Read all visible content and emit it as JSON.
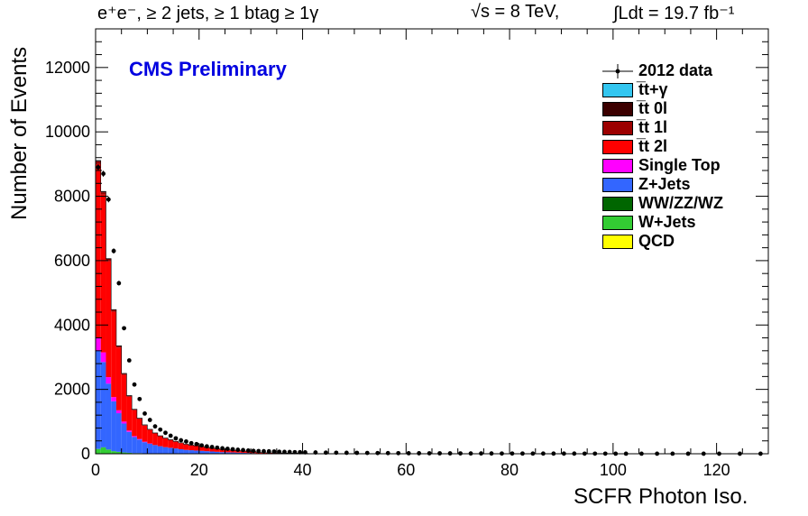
{
  "header": {
    "left": "e⁺e⁻, ≥ 2 jets, ≥ 1 btag ≥ 1γ",
    "center": "√s = 8 TeV,",
    "right": "∫Ldt = 19.7 fb⁻¹"
  },
  "chart_data": {
    "type": "bar",
    "stacked": true,
    "xlabel": "SCFR Photon Iso.",
    "ylabel": "Number of Events",
    "annotation": "CMS Preliminary",
    "xlim": [
      0,
      130
    ],
    "ylim": [
      0,
      13200
    ],
    "xticks": [
      0,
      20,
      40,
      60,
      80,
      100,
      120
    ],
    "yticks": [
      0,
      2000,
      4000,
      6000,
      8000,
      10000,
      12000
    ],
    "bin_width": 1,
    "legend_position": "top-right",
    "legend": [
      {
        "label": "2012 data",
        "kind": "data",
        "color": "#000000"
      },
      {
        "label": "t̅t+γ",
        "kind": "fill",
        "color": "#33c6f0"
      },
      {
        "label": "t̅t 0l",
        "kind": "fill",
        "color": "#3c0000"
      },
      {
        "label": "t̅t 1l",
        "kind": "fill",
        "color": "#9c0000"
      },
      {
        "label": "t̅t 2l",
        "kind": "fill",
        "color": "#ff0000"
      },
      {
        "label": "Single Top",
        "kind": "fill",
        "color": "#ff00ff"
      },
      {
        "label": "Z+Jets",
        "kind": "fill",
        "color": "#3366ff"
      },
      {
        "label": "WW/ZZ/WZ",
        "kind": "fill",
        "color": "#006600"
      },
      {
        "label": "W+Jets",
        "kind": "fill",
        "color": "#33cc33"
      },
      {
        "label": "QCD",
        "kind": "fill",
        "color": "#ffff00"
      }
    ],
    "stack_order": [
      "QCD",
      "W+Jets",
      "WW/ZZ/WZ",
      "Z+Jets",
      "Single Top",
      "t̅t 2l",
      "t̅t 1l",
      "t̅t 0l",
      "t̅t+γ"
    ],
    "series": [
      {
        "name": "QCD",
        "x": [
          0,
          1,
          2,
          3,
          4,
          5
        ],
        "values": [
          0,
          0,
          0,
          0,
          0,
          0
        ]
      },
      {
        "name": "W+Jets",
        "x": [
          0,
          1,
          2,
          3,
          4,
          5,
          6,
          7,
          8,
          9,
          10,
          11,
          12,
          13,
          14,
          15,
          16,
          17,
          18,
          19,
          20
        ],
        "values": [
          150,
          200,
          130,
          80,
          60,
          40,
          30,
          20,
          20,
          10,
          10,
          10,
          5,
          5,
          5,
          5,
          0,
          0,
          0,
          0,
          0
        ]
      },
      {
        "name": "WW/ZZ/WZ",
        "x": [
          0,
          1,
          2,
          3,
          4,
          5,
          6,
          7,
          8,
          9,
          10,
          11,
          12,
          13,
          14,
          15,
          16,
          17,
          18,
          19,
          20
        ],
        "values": [
          0,
          0,
          0,
          0,
          0,
          0,
          0,
          0,
          0,
          0,
          0,
          0,
          0,
          0,
          0,
          0,
          0,
          0,
          0,
          0,
          0
        ]
      },
      {
        "name": "Z+Jets",
        "x": [
          0,
          1,
          2,
          3,
          4,
          5,
          6,
          7,
          8,
          9,
          10,
          11,
          12,
          13,
          14,
          15,
          16,
          17,
          18,
          19,
          20,
          21,
          22,
          23,
          24,
          25,
          26,
          27,
          28,
          29,
          30
        ],
        "values": [
          3050,
          2650,
          2050,
          1550,
          1200,
          900,
          650,
          500,
          420,
          350,
          300,
          260,
          230,
          200,
          180,
          160,
          140,
          120,
          110,
          100,
          90,
          80,
          70,
          60,
          50,
          45,
          40,
          35,
          30,
          25,
          20
        ]
      },
      {
        "name": "Single Top",
        "x": [
          0,
          1,
          2,
          3,
          4,
          5,
          6,
          7,
          8,
          9,
          10
        ],
        "values": [
          400,
          300,
          200,
          130,
          90,
          60,
          40,
          30,
          20,
          15,
          10
        ]
      },
      {
        "name": "t̅t 2l",
        "x": [
          0,
          1,
          2,
          3,
          4,
          5,
          6,
          7,
          8,
          9,
          10,
          11,
          12,
          13,
          14,
          15,
          16,
          17,
          18,
          19,
          20,
          21,
          22,
          23,
          24,
          25,
          26,
          27,
          28,
          29,
          30,
          31,
          32,
          33,
          34,
          35,
          36,
          37,
          38,
          39,
          40
        ],
        "values": [
          5400,
          4900,
          3600,
          2650,
          1950,
          1450,
          1050,
          800,
          620,
          500,
          420,
          360,
          310,
          270,
          240,
          210,
          190,
          170,
          150,
          140,
          130,
          110,
          100,
          90,
          80,
          75,
          70,
          60,
          55,
          50,
          45,
          40,
          35,
          30,
          28,
          25,
          22,
          20,
          18,
          15,
          12
        ]
      },
      {
        "name": "t̅t 1l",
        "x": [
          0,
          1,
          2,
          3,
          4,
          5,
          6,
          7,
          8,
          9,
          10,
          11,
          12,
          13,
          14,
          15,
          16,
          17,
          18,
          19,
          20,
          21,
          22,
          23,
          24,
          25,
          26,
          27,
          28,
          29,
          30
        ],
        "values": [
          80,
          70,
          60,
          50,
          40,
          35,
          30,
          25,
          20,
          18,
          16,
          14,
          12,
          11,
          10,
          9,
          8,
          7,
          6,
          5,
          5,
          4,
          4,
          3,
          3,
          3,
          2,
          2,
          2,
          2,
          2
        ]
      },
      {
        "name": "t̅t 0l",
        "x": [
          0,
          1,
          2,
          3,
          4,
          5,
          6,
          7,
          8,
          9,
          10,
          11,
          12,
          13,
          14,
          15,
          16,
          17,
          18,
          19,
          20
        ],
        "values": [
          20,
          20,
          15,
          12,
          10,
          8,
          6,
          5,
          4,
          4,
          3,
          3,
          2,
          2,
          2,
          2,
          2,
          1,
          1,
          1,
          1
        ]
      },
      {
        "name": "t̅t+γ",
        "x": [
          0,
          1,
          2,
          3,
          4,
          5,
          6,
          7,
          8,
          9,
          10
        ],
        "values": [
          10,
          10,
          8,
          6,
          5,
          4,
          3,
          2,
          2,
          1,
          1
        ]
      }
    ],
    "data_points": {
      "name": "2012 data",
      "x": [
        0.5,
        1.5,
        2.5,
        3.5,
        4.5,
        5.5,
        6.5,
        7.5,
        8.5,
        9.5,
        10.5,
        11.5,
        12.5,
        13.5,
        14.5,
        15.5,
        16.5,
        17.5,
        18.5,
        19.5,
        20.5,
        21.5,
        22.5,
        23.5,
        24.5,
        25.5,
        26.5,
        27.5,
        28.5,
        29.5,
        30.5,
        31.5,
        32.5,
        33.5,
        34.5,
        35.5,
        36.5,
        37.5,
        38.5,
        39.5,
        40.5,
        42.5,
        44.5,
        46.5,
        48.5,
        50.5,
        52.5,
        54.5,
        56.5,
        58.5,
        60.5,
        62.5,
        64.5,
        66.5,
        68.5,
        70.5,
        72.5,
        74.5,
        76.5,
        78.5,
        80.5,
        82.5,
        84.5,
        86.5,
        88.5,
        90.5,
        92.5,
        94.5,
        96.5,
        98.5,
        100.5,
        102.5,
        105.5,
        108.5,
        111.5,
        114.5,
        117.5,
        120.5,
        124.5,
        128.5
      ],
      "y": [
        8900,
        8700,
        7900,
        6300,
        5300,
        3900,
        2900,
        2150,
        1700,
        1250,
        1050,
        850,
        750,
        650,
        560,
        480,
        420,
        380,
        330,
        300,
        260,
        230,
        210,
        190,
        170,
        155,
        140,
        125,
        115,
        100,
        90,
        85,
        80,
        75,
        70,
        62,
        58,
        55,
        50,
        48,
        45,
        40,
        35,
        32,
        30,
        28,
        25,
        22,
        20,
        18,
        17,
        16,
        15,
        14,
        12,
        11,
        10,
        10,
        9,
        8,
        8,
        7,
        6,
        6,
        5,
        5,
        5,
        4,
        4,
        4,
        3,
        3,
        3,
        3,
        3,
        2,
        2,
        2,
        2,
        2
      ]
    }
  }
}
